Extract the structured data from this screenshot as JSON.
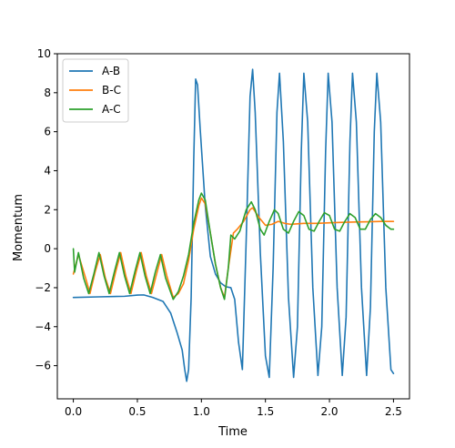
{
  "chart_data": {
    "type": "line",
    "title": "",
    "xlabel": "Time",
    "ylabel": "Momentum",
    "xlim": [
      -0.125,
      2.625
    ],
    "ylim": [
      -7.7,
      10
    ],
    "xticks": [
      0.0,
      0.5,
      1.0,
      1.5,
      2.0,
      2.5
    ],
    "xtick_labels": [
      "0.0",
      "0.5",
      "1.0",
      "1.5",
      "2.0",
      "2.5"
    ],
    "yticks": [
      -6,
      -4,
      -2,
      0,
      2,
      4,
      6,
      8,
      10
    ],
    "ytick_labels": [
      "−6",
      "−4",
      "−2",
      "0",
      "2",
      "4",
      "6",
      "8",
      "10"
    ],
    "grid": false,
    "legend_position": "top-left",
    "series": [
      {
        "name": "A-B",
        "color": "#1f77b4",
        "points": [
          [
            0.0,
            -2.5
          ],
          [
            0.2,
            -2.47
          ],
          [
            0.4,
            -2.44
          ],
          [
            0.5,
            -2.38
          ],
          [
            0.55,
            -2.37
          ],
          [
            0.62,
            -2.5
          ],
          [
            0.7,
            -2.7
          ],
          [
            0.76,
            -3.3
          ],
          [
            0.81,
            -4.3
          ],
          [
            0.85,
            -5.2
          ],
          [
            0.87,
            -6.2
          ],
          [
            0.885,
            -6.8
          ],
          [
            0.9,
            -6.2
          ],
          [
            0.92,
            -2.5
          ],
          [
            0.94,
            4.5
          ],
          [
            0.955,
            8.7
          ],
          [
            0.97,
            8.4
          ],
          [
            0.99,
            6.2
          ],
          [
            1.03,
            2.2
          ],
          [
            1.07,
            -0.4
          ],
          [
            1.11,
            -1.3
          ],
          [
            1.15,
            -1.75
          ],
          [
            1.19,
            -1.95
          ],
          [
            1.23,
            -2.0
          ],
          [
            1.26,
            -2.6
          ],
          [
            1.29,
            -4.8
          ],
          [
            1.32,
            -6.2
          ],
          [
            1.35,
            0.5
          ],
          [
            1.38,
            7.8
          ],
          [
            1.4,
            9.2
          ],
          [
            1.42,
            7.0
          ],
          [
            1.46,
            -0.2
          ],
          [
            1.5,
            -5.5
          ],
          [
            1.53,
            -6.6
          ],
          [
            1.56,
            -1.0
          ],
          [
            1.59,
            7.0
          ],
          [
            1.61,
            9.0
          ],
          [
            1.64,
            5.5
          ],
          [
            1.68,
            -2.5
          ],
          [
            1.72,
            -6.6
          ],
          [
            1.75,
            -4.0
          ],
          [
            1.78,
            5.0
          ],
          [
            1.8,
            9.0
          ],
          [
            1.83,
            6.5
          ],
          [
            1.87,
            -2.0
          ],
          [
            1.91,
            -6.5
          ],
          [
            1.94,
            -4.0
          ],
          [
            1.97,
            5.0
          ],
          [
            1.99,
            9.0
          ],
          [
            2.02,
            6.5
          ],
          [
            2.06,
            -2.0
          ],
          [
            2.1,
            -6.5
          ],
          [
            2.13,
            -3.5
          ],
          [
            2.16,
            5.5
          ],
          [
            2.18,
            9.0
          ],
          [
            2.21,
            6.5
          ],
          [
            2.25,
            -2.0
          ],
          [
            2.29,
            -6.5
          ],
          [
            2.32,
            -3.0
          ],
          [
            2.35,
            6.0
          ],
          [
            2.37,
            9.0
          ],
          [
            2.4,
            6.5
          ],
          [
            2.44,
            -2.0
          ],
          [
            2.48,
            -6.2
          ],
          [
            2.5,
            -6.4
          ]
        ]
      },
      {
        "name": "B-C",
        "color": "#ff7f0e",
        "points": [
          [
            0.0,
            -1.3
          ],
          [
            0.04,
            -0.3
          ],
          [
            0.1,
            -1.6
          ],
          [
            0.13,
            -2.3
          ],
          [
            0.17,
            -1.2
          ],
          [
            0.21,
            -0.3
          ],
          [
            0.25,
            -1.5
          ],
          [
            0.29,
            -2.3
          ],
          [
            0.33,
            -1.2
          ],
          [
            0.37,
            -0.2
          ],
          [
            0.41,
            -1.4
          ],
          [
            0.45,
            -2.3
          ],
          [
            0.49,
            -1.2
          ],
          [
            0.53,
            -0.2
          ],
          [
            0.57,
            -1.4
          ],
          [
            0.61,
            -2.3
          ],
          [
            0.65,
            -1.3
          ],
          [
            0.69,
            -0.3
          ],
          [
            0.73,
            -1.4
          ],
          [
            0.78,
            -2.5
          ],
          [
            0.82,
            -2.3
          ],
          [
            0.86,
            -1.8
          ],
          [
            0.9,
            -0.6
          ],
          [
            0.94,
            1.0
          ],
          [
            0.98,
            2.2
          ],
          [
            1.0,
            2.6
          ],
          [
            1.03,
            2.3
          ],
          [
            1.07,
            0.8
          ],
          [
            1.11,
            -0.8
          ],
          [
            1.15,
            -2.0
          ],
          [
            1.18,
            -2.5
          ],
          [
            1.21,
            -1.0
          ],
          [
            1.25,
            0.8
          ],
          [
            1.28,
            1.0
          ],
          [
            1.33,
            1.4
          ],
          [
            1.38,
            2.0
          ],
          [
            1.4,
            2.1
          ],
          [
            1.45,
            1.6
          ],
          [
            1.5,
            1.2
          ],
          [
            1.55,
            1.25
          ],
          [
            1.6,
            1.4
          ],
          [
            1.65,
            1.3
          ],
          [
            1.7,
            1.25
          ],
          [
            1.8,
            1.3
          ],
          [
            1.9,
            1.3
          ],
          [
            2.0,
            1.33
          ],
          [
            2.1,
            1.35
          ],
          [
            2.2,
            1.37
          ],
          [
            2.3,
            1.38
          ],
          [
            2.4,
            1.4
          ],
          [
            2.5,
            1.4
          ]
        ]
      },
      {
        "name": "A-C",
        "color": "#2ca02c",
        "points": [
          [
            0.0,
            0.0
          ],
          [
            0.01,
            -1.2
          ],
          [
            0.04,
            -0.2
          ],
          [
            0.08,
            -1.5
          ],
          [
            0.12,
            -2.3
          ],
          [
            0.16,
            -1.3
          ],
          [
            0.2,
            -0.2
          ],
          [
            0.24,
            -1.4
          ],
          [
            0.28,
            -2.3
          ],
          [
            0.32,
            -1.2
          ],
          [
            0.36,
            -0.2
          ],
          [
            0.4,
            -1.4
          ],
          [
            0.44,
            -2.3
          ],
          [
            0.48,
            -1.2
          ],
          [
            0.52,
            -0.2
          ],
          [
            0.56,
            -1.4
          ],
          [
            0.6,
            -2.3
          ],
          [
            0.64,
            -1.2
          ],
          [
            0.68,
            -0.3
          ],
          [
            0.72,
            -1.5
          ],
          [
            0.78,
            -2.6
          ],
          [
            0.82,
            -2.2
          ],
          [
            0.86,
            -1.4
          ],
          [
            0.9,
            -0.3
          ],
          [
            0.94,
            1.3
          ],
          [
            0.98,
            2.5
          ],
          [
            1.0,
            2.85
          ],
          [
            1.03,
            2.5
          ],
          [
            1.07,
            0.8
          ],
          [
            1.11,
            -0.8
          ],
          [
            1.15,
            -2.0
          ],
          [
            1.18,
            -2.6
          ],
          [
            1.21,
            -1.0
          ],
          [
            1.23,
            0.7
          ],
          [
            1.26,
            0.5
          ],
          [
            1.3,
            0.9
          ],
          [
            1.35,
            2.0
          ],
          [
            1.39,
            2.4
          ],
          [
            1.42,
            2.0
          ],
          [
            1.46,
            1.0
          ],
          [
            1.49,
            0.7
          ],
          [
            1.53,
            1.4
          ],
          [
            1.57,
            2.0
          ],
          [
            1.6,
            1.8
          ],
          [
            1.64,
            1.0
          ],
          [
            1.68,
            0.8
          ],
          [
            1.72,
            1.4
          ],
          [
            1.76,
            1.9
          ],
          [
            1.8,
            1.7
          ],
          [
            1.84,
            1.0
          ],
          [
            1.88,
            0.9
          ],
          [
            1.92,
            1.4
          ],
          [
            1.96,
            1.85
          ],
          [
            2.0,
            1.7
          ],
          [
            2.04,
            1.0
          ],
          [
            2.08,
            0.9
          ],
          [
            2.12,
            1.4
          ],
          [
            2.16,
            1.8
          ],
          [
            2.2,
            1.6
          ],
          [
            2.24,
            1.0
          ],
          [
            2.28,
            1.0
          ],
          [
            2.32,
            1.5
          ],
          [
            2.36,
            1.8
          ],
          [
            2.4,
            1.6
          ],
          [
            2.44,
            1.2
          ],
          [
            2.48,
            1.0
          ],
          [
            2.5,
            1.0
          ]
        ]
      }
    ]
  }
}
